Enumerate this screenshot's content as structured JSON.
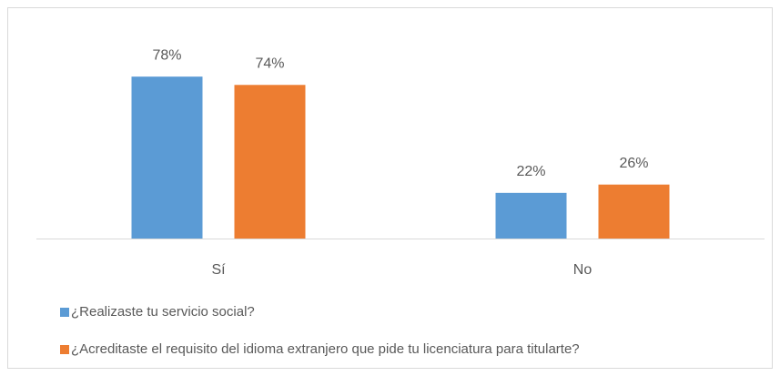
{
  "chart_data": {
    "type": "bar",
    "categories": [
      "Sí",
      "No"
    ],
    "series": [
      {
        "name": "¿Realizaste tu servicio social?",
        "color": "#5b9bd5",
        "values": [
          78,
          22
        ],
        "value_labels": [
          "78%",
          "22%"
        ]
      },
      {
        "name": "¿Acreditaste el requisito del idioma extranjero que pide tu licenciatura para titularte?",
        "color": "#ed7d31",
        "values": [
          74,
          26
        ],
        "value_labels": [
          "74%",
          "26%"
        ]
      }
    ]
  }
}
